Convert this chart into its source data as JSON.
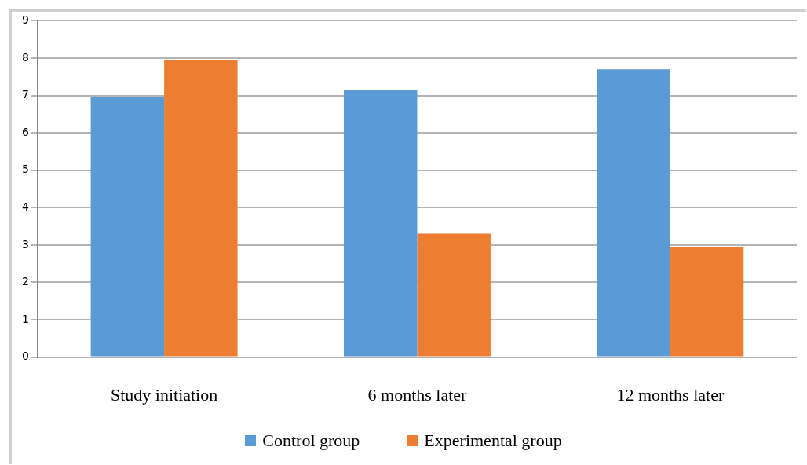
{
  "chart_data": {
    "type": "bar",
    "categories": [
      "Study initiation",
      "6 months later",
      "12 months later"
    ],
    "series": [
      {
        "name": "Control group",
        "color": "#5b9bd5",
        "values": [
          6.95,
          7.15,
          7.7
        ]
      },
      {
        "name": "Experimental group",
        "color": "#ed7d31",
        "values": [
          7.95,
          3.3,
          2.95
        ]
      }
    ],
    "ylim": [
      0,
      9
    ],
    "yticks": [
      0,
      1,
      2,
      3,
      4,
      5,
      6,
      7,
      8,
      9
    ],
    "grid": "y",
    "legend": "bottom"
  }
}
